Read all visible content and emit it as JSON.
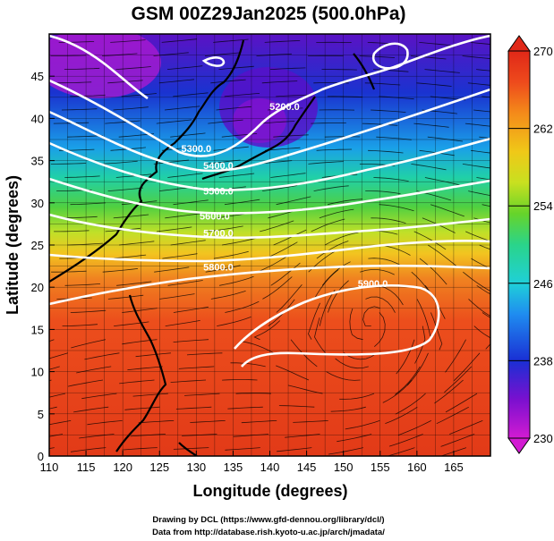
{
  "chart_data": {
    "type": "heatmap",
    "title": "GSM 00Z29Jan2025 (500.0hPa)",
    "xlabel": "Longitude (degrees)",
    "ylabel": "Latitude  (degrees)",
    "xlim": [
      110,
      170
    ],
    "ylim": [
      0,
      50
    ],
    "xticks": [
      "110",
      "115",
      "120",
      "125",
      "130",
      "135",
      "140",
      "145",
      "150",
      "155",
      "160",
      "165"
    ],
    "yticks": [
      "0",
      "5",
      "10",
      "15",
      "20",
      "25",
      "30",
      "35",
      "40",
      "45"
    ],
    "colorbar": {
      "range": [
        230,
        270
      ],
      "ticks": [
        "230",
        "238",
        "246",
        "254",
        "262",
        "270"
      ],
      "colors": [
        "#d21bd2",
        "#6a0fd0",
        "#1a2fd4",
        "#1f8cf0",
        "#1fd0d8",
        "#2ad48a",
        "#66d42a",
        "#c8e020",
        "#f0c818",
        "#f48a1a",
        "#ee4a1c",
        "#e02818"
      ]
    },
    "contours": {
      "field": "geopotential height (m)",
      "labels": [
        {
          "text": "5200.0",
          "lon": 142,
          "lat": 41
        },
        {
          "text": "5300.0",
          "lon": 130,
          "lat": 36
        },
        {
          "text": "5400.0",
          "lon": 133,
          "lat": 34
        },
        {
          "text": "5500.0",
          "lon": 133,
          "lat": 31
        },
        {
          "text": "5600.0",
          "lon": 132.5,
          "lat": 28
        },
        {
          "text": "5700.0",
          "lon": 133,
          "lat": 26
        },
        {
          "text": "5800.0",
          "lon": 133,
          "lat": 22
        },
        {
          "text": "5900.0",
          "lon": 154,
          "lat": 20
        }
      ]
    }
  },
  "credits": {
    "line1": "Drawing by DCL (https://www.gfd-dennou.org/library/dcl/)",
    "line2": "Data from http://database.rish.kyoto-u.ac.jp/arch/jmadata/"
  }
}
